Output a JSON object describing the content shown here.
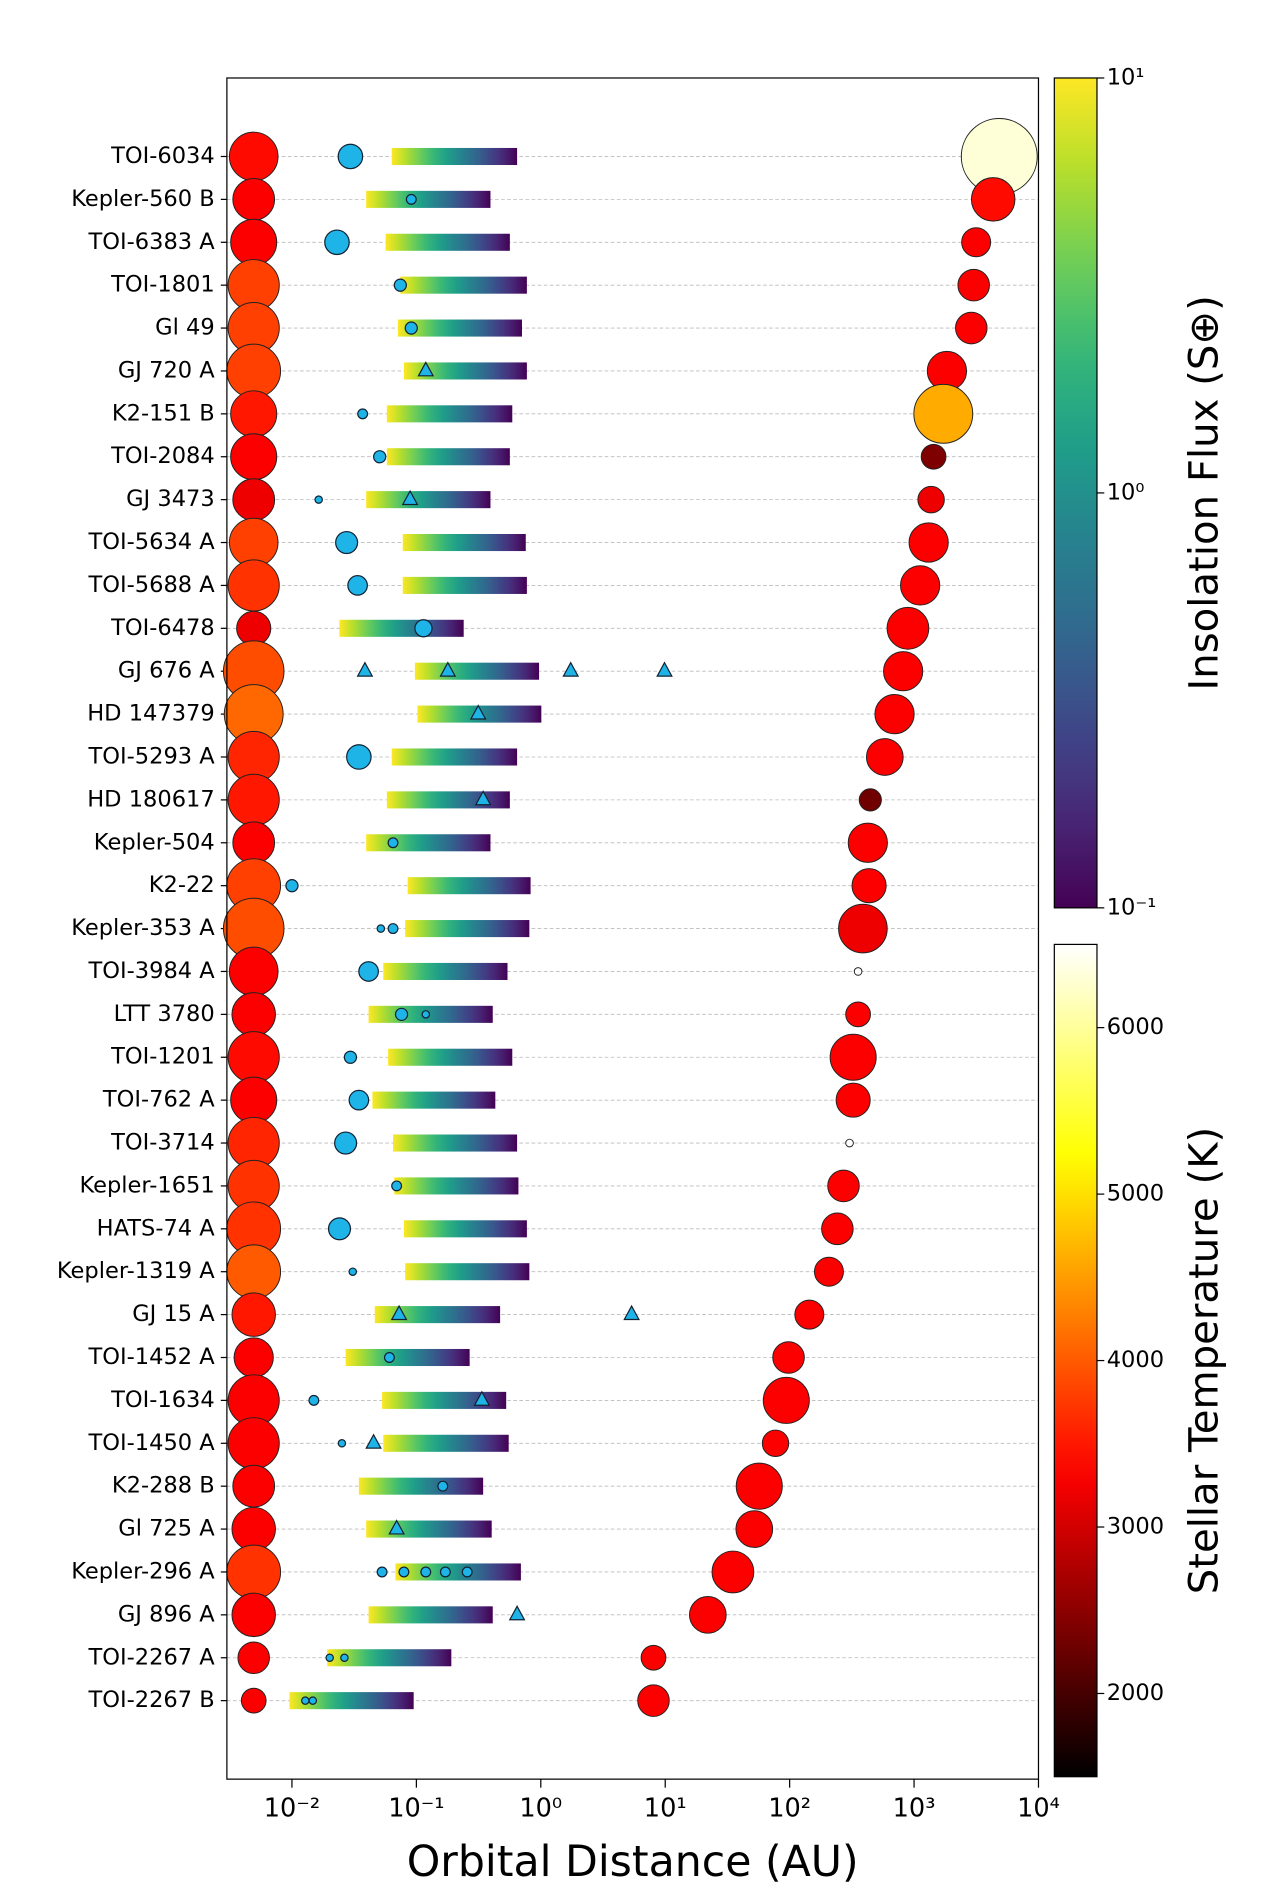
{
  "chart_data": {
    "type": "scatter",
    "x_label": "Orbital Distance (AU)",
    "x_log": true,
    "xlim": [
      0.003,
      10000
    ],
    "xticks": [
      {
        "value": 0.01,
        "label": "10⁻²"
      },
      {
        "value": 0.1,
        "label": "10⁻¹"
      },
      {
        "value": 1,
        "label": "10⁰"
      },
      {
        "value": 10,
        "label": "10¹"
      },
      {
        "value": 100,
        "label": "10²"
      },
      {
        "value": 1000,
        "label": "10³"
      },
      {
        "value": 10000,
        "label": "10⁴"
      }
    ],
    "grid": true,
    "planet_color": "#1fb4e8",
    "systems": [
      {
        "name": "TOI-6034",
        "host": {
          "temperature": 3400,
          "radius": 0.57
        },
        "hz": [
          0.0634,
          0.645
        ],
        "planets": [
          {
            "a": 0.0295,
            "radius": 9.8
          }
        ],
        "companion": {
          "a": 4840,
          "temperature": 6300,
          "radius": 0.89
        }
      },
      {
        "name": "Kepler-560 B",
        "host": {
          "temperature": 3300,
          "radius": 0.49
        },
        "hz": [
          0.0395,
          0.394
        ],
        "planets": [
          {
            "a": 0.091,
            "radius": 1.56
          }
        ],
        "companion": {
          "a": 4325,
          "temperature": 3400,
          "radius": 0.51
        }
      },
      {
        "name": "TOI-6383 A",
        "host": {
          "temperature": 3300,
          "radius": 0.54
        },
        "hz": [
          0.0566,
          0.564
        ],
        "planets": [
          {
            "a": 0.023,
            "radius": 9.8
          }
        ],
        "companion": {
          "a": 3155,
          "temperature": 3300,
          "radius": 0.34
        }
      },
      {
        "name": "TOI-1801",
        "host": {
          "temperature": 3800,
          "radius": 0.6
        },
        "hz": [
          0.0743,
          0.773
        ],
        "planets": [
          {
            "a": 0.0743,
            "radius": 2.4
          }
        ],
        "companion": {
          "a": 3015,
          "temperature": 3300,
          "radius": 0.37
        }
      },
      {
        "name": "Gl 49",
        "host": {
          "temperature": 3800,
          "radius": 0.6
        },
        "hz": [
          0.071,
          0.706
        ],
        "planets": [
          {
            "a": 0.091,
            "radius": 2.4
          }
        ],
        "companion": {
          "a": 2884,
          "temperature": 3300,
          "radius": 0.37
        }
      },
      {
        "name": "GJ 720 A",
        "host": {
          "temperature": 3800,
          "radius": 0.63
        },
        "hz": [
          0.0794,
          0.773
        ],
        "planets": [
          {
            "a": 0.119,
            "radius": null
          }
        ],
        "companion": {
          "a": 1837,
          "temperature": 3300,
          "radius": 0.46
        }
      },
      {
        "name": "K2-151 B",
        "host": {
          "temperature": 3500,
          "radius": 0.54
        },
        "hz": [
          0.0579,
          0.59
        ],
        "planets": [
          {
            "a": 0.037,
            "radius": 1.56
          }
        ],
        "companion": {
          "a": 1718,
          "temperature": 4600,
          "radius": 0.69
        }
      },
      {
        "name": "TOI-2084",
        "host": {
          "temperature": 3300,
          "radius": 0.54
        },
        "hz": [
          0.0579,
          0.564
        ],
        "planets": [
          {
            "a": 0.0507,
            "radius": 2.4
          }
        ],
        "companion": {
          "a": 1435,
          "temperature": 2400,
          "radius": 0.29
        }
      },
      {
        "name": "GJ 3473",
        "host": {
          "temperature": 3200,
          "radius": 0.49
        },
        "hz": [
          0.0395,
          0.394
        ],
        "planets": [
          {
            "a": 0.0164,
            "radius": 0.88
          },
          {
            "a": 0.089,
            "radius": null
          }
        ],
        "companion": {
          "a": 1371,
          "temperature": 3200,
          "radius": 0.31
        }
      },
      {
        "name": "TOI-5634 A",
        "host": {
          "temperature": 3800,
          "radius": 0.57
        },
        "hz": [
          0.0777,
          0.757
        ],
        "planets": [
          {
            "a": 0.0275,
            "radius": 7.9
          }
        ],
        "companion": {
          "a": 1310,
          "temperature": 3300,
          "radius": 0.46
        }
      },
      {
        "name": "TOI-5688 A",
        "host": {
          "temperature": 3700,
          "radius": 0.6
        },
        "hz": [
          0.0777,
          0.773
        ],
        "planets": [
          {
            "a": 0.0337,
            "radius": 6.25
          }
        ],
        "companion": {
          "a": 1119,
          "temperature": 3300,
          "radius": 0.46
        }
      },
      {
        "name": "TOI-6478",
        "host": {
          "temperature": 3200,
          "radius": 0.4
        },
        "hz": [
          0.0241,
          0.24
        ],
        "planets": [
          {
            "a": 0.114,
            "radius": 4.8
          }
        ],
        "companion": {
          "a": 893,
          "temperature": 3300,
          "radius": 0.49
        }
      },
      {
        "name": "GJ 676 A",
        "host": {
          "temperature": 3900,
          "radius": 0.71
        },
        "hz": [
          0.0973,
          0.968
        ],
        "planets": [
          {
            "a": 0.0386,
            "radius": null
          },
          {
            "a": 0.179,
            "radius": null
          },
          {
            "a": 1.74,
            "radius": null
          },
          {
            "a": 9.87,
            "radius": null
          }
        ],
        "companion": {
          "a": 817,
          "temperature": 3300,
          "radius": 0.46
        }
      },
      {
        "name": "HD 147379",
        "host": {
          "temperature": 4100,
          "radius": 0.69
        },
        "hz": [
          0.102,
          1.01
        ],
        "planets": [
          {
            "a": 0.314,
            "radius": null
          }
        ],
        "companion": {
          "a": 697,
          "temperature": 3300,
          "radius": 0.46
        }
      },
      {
        "name": "TOI-5293 A",
        "host": {
          "temperature": 3600,
          "radius": 0.6
        },
        "hz": [
          0.0634,
          0.645
        ],
        "planets": [
          {
            "a": 0.0345,
            "radius": 9.8
          }
        ],
        "companion": {
          "a": 582,
          "temperature": 3300,
          "radius": 0.43
        }
      },
      {
        "name": "HD 180617",
        "host": {
          "temperature": 3500,
          "radius": 0.6
        },
        "hz": [
          0.0579,
          0.564
        ],
        "planets": [
          {
            "a": 0.344,
            "radius": null
          }
        ],
        "companion": {
          "a": 445,
          "temperature": 2300,
          "radius": 0.26
        }
      },
      {
        "name": "Kepler-504",
        "host": {
          "temperature": 3300,
          "radius": 0.49
        },
        "hz": [
          0.0395,
          0.394
        ],
        "planets": [
          {
            "a": 0.0649,
            "radius": 1.56
          }
        ],
        "companion": {
          "a": 425,
          "temperature": 3300,
          "radius": 0.46
        }
      },
      {
        "name": "K2-22",
        "host": {
          "temperature": 3800,
          "radius": 0.63
        },
        "hz": [
          0.0851,
          0.828
        ],
        "planets": [
          {
            "a": 0.01,
            "radius": 2.4
          }
        ],
        "companion": {
          "a": 435,
          "temperature": 3300,
          "radius": 0.4
        }
      },
      {
        "name": "Kepler-353 A",
        "host": {
          "temperature": 3900,
          "radius": 0.71
        },
        "hz": [
          0.0813,
          0.809
        ],
        "planets": [
          {
            "a": 0.0518,
            "radius": 0.88
          },
          {
            "a": 0.0649,
            "radius": 1.56
          }
        ],
        "companion": {
          "a": 388,
          "temperature": 3200,
          "radius": 0.57
        }
      },
      {
        "name": "TOI-3984 A",
        "host": {
          "temperature": 3300,
          "radius": 0.57
        },
        "hz": [
          0.0542,
          0.54
        ],
        "planets": [
          {
            "a": 0.0413,
            "radius": 6.25
          }
        ],
        "companion": {
          "a": 355,
          "temperature": 6500,
          "radius": 0.09
        }
      },
      {
        "name": "LTT 3780",
        "host": {
          "temperature": 3300,
          "radius": 0.51
        },
        "hz": [
          0.0413,
          0.411
        ],
        "planets": [
          {
            "a": 0.076,
            "radius": 2.4
          },
          {
            "a": 0.119,
            "radius": 0.88
          }
        ],
        "companion": {
          "a": 355,
          "temperature": 3300,
          "radius": 0.29
        }
      },
      {
        "name": "TOI-1201",
        "host": {
          "temperature": 3400,
          "radius": 0.6
        },
        "hz": [
          0.0593,
          0.59
        ],
        "planets": [
          {
            "a": 0.0295,
            "radius": 2.4
          }
        ],
        "companion": {
          "a": 324,
          "temperature": 3300,
          "radius": 0.54
        }
      },
      {
        "name": "TOI-762 A",
        "host": {
          "temperature": 3300,
          "radius": 0.54
        },
        "hz": [
          0.0443,
          0.431
        ],
        "planets": [
          {
            "a": 0.0345,
            "radius": 6.25
          }
        ],
        "companion": {
          "a": 324,
          "temperature": 3300,
          "radius": 0.4
        }
      },
      {
        "name": "TOI-3714",
        "host": {
          "temperature": 3600,
          "radius": 0.6
        },
        "hz": [
          0.0649,
          0.645
        ],
        "planets": [
          {
            "a": 0.027,
            "radius": 7.9
          }
        ],
        "companion": {
          "a": 303,
          "temperature": 6500,
          "radius": 0.09
        }
      },
      {
        "name": "Kepler-1651",
        "host": {
          "temperature": 3700,
          "radius": 0.6
        },
        "hz": [
          0.0664,
          0.661
        ],
        "planets": [
          {
            "a": 0.0694,
            "radius": 1.56
          }
        ],
        "companion": {
          "a": 271,
          "temperature": 3300,
          "radius": 0.37
        }
      },
      {
        "name": "HATS-74 A",
        "host": {
          "temperature": 3700,
          "radius": 0.63
        },
        "hz": [
          0.0794,
          0.773
        ],
        "planets": [
          {
            "a": 0.0241,
            "radius": 7.9
          }
        ],
        "companion": {
          "a": 242,
          "temperature": 3300,
          "radius": 0.37
        }
      },
      {
        "name": "Kepler-1319 A",
        "host": {
          "temperature": 4000,
          "radius": 0.63
        },
        "hz": [
          0.0813,
          0.809
        ],
        "planets": [
          {
            "a": 0.0308,
            "radius": 0.88
          }
        ],
        "companion": {
          "a": 207,
          "temperature": 3300,
          "radius": 0.34
        }
      },
      {
        "name": "GJ 15 A",
        "host": {
          "temperature": 3500,
          "radius": 0.51
        },
        "hz": [
          0.0463,
          0.471
        ],
        "planets": [
          {
            "a": 0.0726,
            "radius": null
          },
          {
            "a": 5.37,
            "radius": null
          }
        ],
        "companion": {
          "a": 144,
          "temperature": 3300,
          "radius": 0.34
        }
      },
      {
        "name": "TOI-1452 A",
        "host": {
          "temperature": 3300,
          "radius": 0.46
        },
        "hz": [
          0.027,
          0.268
        ],
        "planets": [
          {
            "a": 0.0607,
            "radius": 1.56
          }
        ],
        "companion": {
          "a": 98,
          "temperature": 3300,
          "radius": 0.37
        }
      },
      {
        "name": "TOI-1634",
        "host": {
          "temperature": 3300,
          "radius": 0.6
        },
        "hz": [
          0.053,
          0.527
        ],
        "planets": [
          {
            "a": 0.015,
            "radius": 1.56
          },
          {
            "a": 0.336,
            "radius": null
          }
        ],
        "companion": {
          "a": 94,
          "temperature": 3300,
          "radius": 0.54
        }
      },
      {
        "name": "TOI-1450 A",
        "host": {
          "temperature": 3300,
          "radius": 0.6
        },
        "hz": [
          0.0542,
          0.552
        ],
        "planets": [
          {
            "a": 0.0252,
            "radius": 0.88
          },
          {
            "a": 0.0453,
            "radius": null
          }
        ],
        "companion": {
          "a": 77,
          "temperature": 3300,
          "radius": 0.31
        }
      },
      {
        "name": "K2-288 B",
        "host": {
          "temperature": 3300,
          "radius": 0.49
        },
        "hz": [
          0.0345,
          0.344
        ],
        "planets": [
          {
            "a": 0.163,
            "radius": 1.56
          }
        ],
        "companion": {
          "a": 57,
          "temperature": 3300,
          "radius": 0.54
        }
      },
      {
        "name": "Gl 725 A",
        "host": {
          "temperature": 3300,
          "radius": 0.51
        },
        "hz": [
          0.0395,
          0.403
        ],
        "planets": [
          {
            "a": 0.0694,
            "radius": null
          }
        ],
        "companion": {
          "a": 52,
          "temperature": 3300,
          "radius": 0.43
        }
      },
      {
        "name": "Kepler-296 A",
        "host": {
          "temperature": 3700,
          "radius": 0.63
        },
        "hz": [
          0.0679,
          0.692
        ],
        "planets": [
          {
            "a": 0.053,
            "radius": 1.56
          },
          {
            "a": 0.0794,
            "radius": 1.56
          },
          {
            "a": 0.119,
            "radius": 1.56
          },
          {
            "a": 0.171,
            "radius": 1.56
          },
          {
            "a": 0.256,
            "radius": 1.56
          }
        ],
        "companion": {
          "a": 35,
          "temperature": 3300,
          "radius": 0.49
        }
      },
      {
        "name": "GJ 896 A",
        "host": {
          "temperature": 3300,
          "radius": 0.51
        },
        "hz": [
          0.0413,
          0.411
        ],
        "planets": [
          {
            "a": 0.645,
            "radius": null
          }
        ],
        "companion": {
          "a": 22,
          "temperature": 3300,
          "radius": 0.43
        }
      },
      {
        "name": "TOI-2267 A",
        "host": {
          "temperature": 3300,
          "radius": 0.37
        },
        "hz": [
          0.0192,
          0.191
        ],
        "planets": [
          {
            "a": 0.0201,
            "radius": 0.88
          },
          {
            "a": 0.0264,
            "radius": 0.88
          }
        ],
        "companion": {
          "a": 8.05,
          "temperature": 3300,
          "radius": 0.29
        }
      },
      {
        "name": "TOI-2267 B",
        "host": {
          "temperature": 3300,
          "radius": 0.29
        },
        "hz": [
          0.00955,
          0.0951
        ],
        "planets": [
          {
            "a": 0.0128,
            "radius": 0.88
          },
          {
            "a": 0.0147,
            "radius": 0.88
          }
        ],
        "companion": {
          "a": 8.05,
          "temperature": 3300,
          "radius": 0.37
        }
      }
    ],
    "colorbars": [
      {
        "label": "Insolation Flux (S⊕)",
        "colormap": "viridis",
        "log": true,
        "lim": [
          0.1,
          10
        ],
        "ticks": [
          {
            "value": 0.1,
            "label": "10⁻¹"
          },
          {
            "value": 1,
            "label": "10⁰"
          },
          {
            "value": 10,
            "label": "10¹"
          }
        ]
      },
      {
        "label": "Stellar Temperature (K)",
        "colormap": "hot",
        "log": false,
        "lim": [
          1500,
          6500
        ],
        "ticks": [
          2000,
          3000,
          4000,
          5000,
          6000
        ]
      }
    ]
  }
}
